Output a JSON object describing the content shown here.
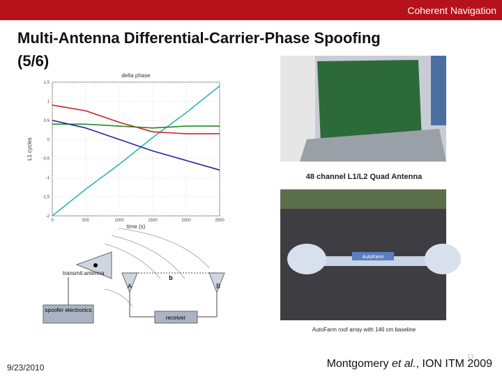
{
  "header": {
    "brand": "Coherent Navigation"
  },
  "title": "Multi-Antenna Differential-Carrier-Phase Spoofing (5/6)",
  "plot": {
    "title": "delta phase",
    "xlabel": "time (s)",
    "ylabel": "L1 cycles",
    "x": [
      0,
      500,
      1000,
      1500,
      2000,
      2500
    ],
    "series": [
      {
        "color": "#2bb5b5",
        "values": [
          -2,
          -1.3,
          -0.65,
          0.05,
          0.7,
          1.4
        ]
      },
      {
        "color": "#cc2222",
        "values": [
          0.9,
          0.75,
          0.45,
          0.2,
          0.15,
          0.15
        ]
      },
      {
        "color": "#228822",
        "values": [
          0.4,
          0.4,
          0.35,
          0.3,
          0.35,
          0.35
        ]
      },
      {
        "color": "#22229a",
        "values": [
          0.5,
          0.3,
          0,
          -0.3,
          -0.55,
          -0.8
        ]
      }
    ],
    "xlim": [
      0,
      2500
    ],
    "ylim": [
      -2,
      1.5
    ],
    "xticks": [
      0,
      500,
      1000,
      1500,
      2000,
      2500
    ],
    "yticks": [
      -2,
      -1.5,
      -1,
      -0.5,
      0,
      0.5,
      1,
      1.5
    ]
  },
  "photo_board": {
    "caption": "48 channel L1/L2 Quad Antenna"
  },
  "photo_roof": {
    "label": "AutoFarm",
    "caption": "AutoFarm roof array with 146 cm baseline"
  },
  "diagram": {
    "transmit": "transmit antenna",
    "antenna_a": "A",
    "baseline": "b",
    "antenna_b": "B",
    "spoofer": "spoofer electronics",
    "receiver": "receiver"
  },
  "footer": {
    "date": "9/23/2010",
    "slide_number": "13",
    "citation": {
      "author": "Montgomery ",
      "etal": "et al.",
      "venue": ", ION ITM 2009"
    }
  }
}
